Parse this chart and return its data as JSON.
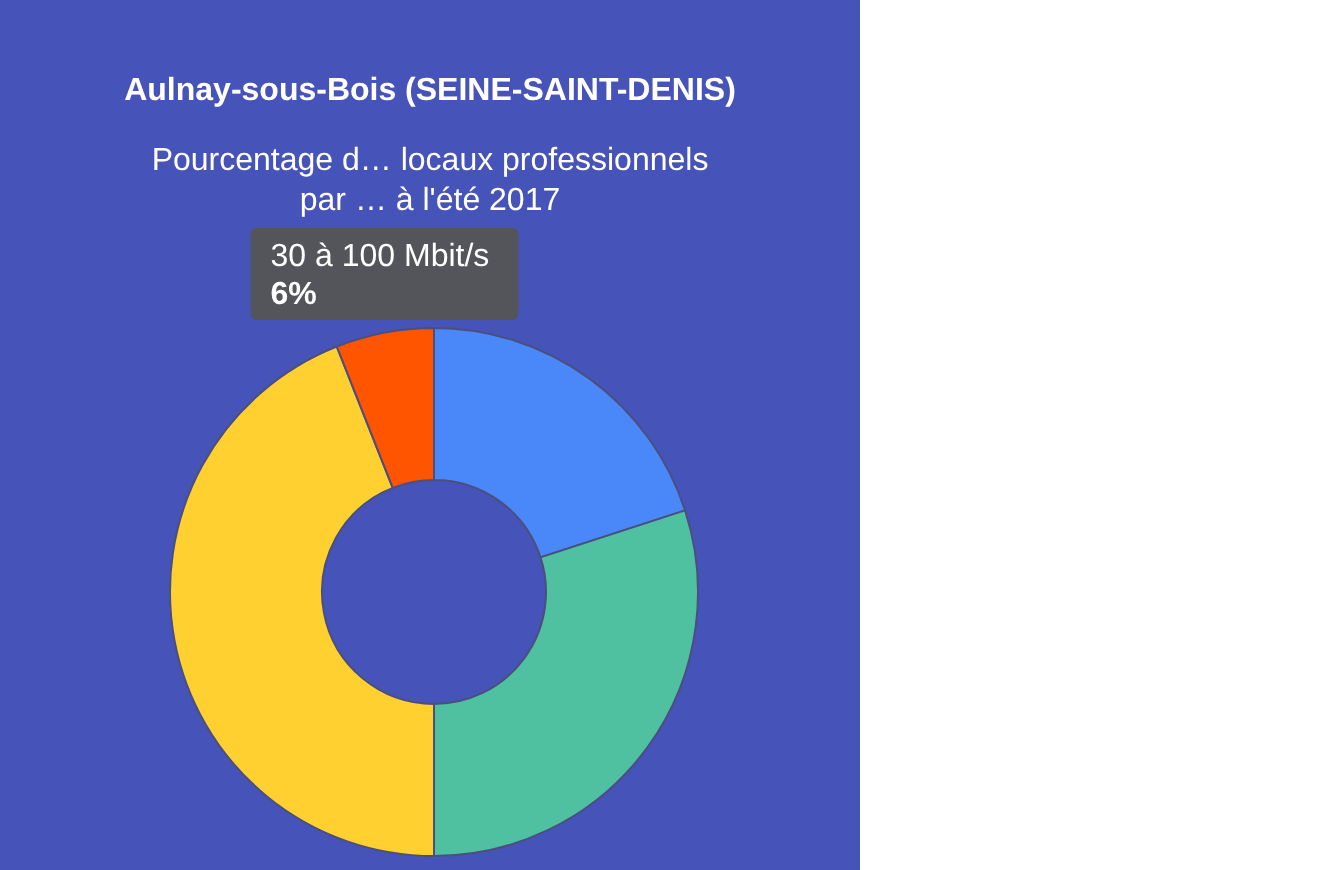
{
  "chart_data": {
    "type": "donut",
    "title": "Aulnay-sous-Bois (SEINE-SAINT-DENIS)",
    "subtitle": "Pourcentage d… locaux professionnels\npar … à l'été 2017",
    "categories": [
      null,
      null,
      null,
      "30 à 100 Mbit/s"
    ],
    "values": [
      20,
      30,
      44,
      6
    ],
    "colors": [
      "#4a88fa",
      "#50c1a0",
      "#ffd02f",
      "#ff5500"
    ],
    "value_labels": [
      null,
      null,
      null,
      "6%"
    ]
  }
}
